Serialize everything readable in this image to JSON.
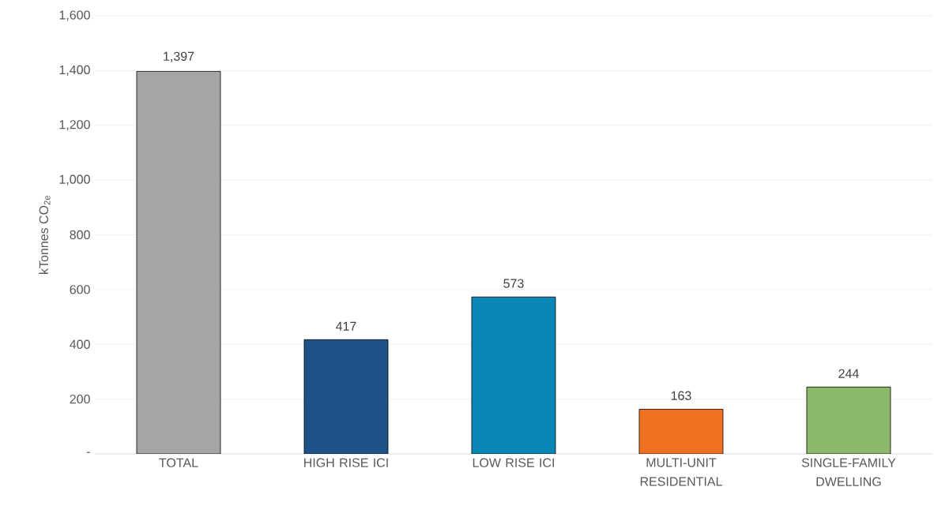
{
  "chart_data": {
    "type": "bar",
    "ylabel": "kTonnes CO$_{2e}$",
    "categories": [
      "TOTAL",
      "HIGH RISE ICI",
      "LOW RISE ICI",
      "MULTI-UNIT RESIDENTIAL",
      "SINGLE-FAMILY DWELLING"
    ],
    "values": [
      1397,
      417,
      573,
      163,
      244
    ],
    "colors": [
      "#a5a5a5",
      "#1f5288",
      "#0b87b7",
      "#f07021",
      "#8cb86a"
    ],
    "ylim": [
      0,
      1600
    ],
    "yticks": [
      {
        "value": 0,
        "label": "-"
      },
      {
        "value": 200,
        "label": "200"
      },
      {
        "value": 400,
        "label": "400"
      },
      {
        "value": 600,
        "label": "600"
      },
      {
        "value": 800,
        "label": "800"
      },
      {
        "value": 1000,
        "label": "1,000"
      },
      {
        "value": 1200,
        "label": "1,200"
      },
      {
        "value": 1400,
        "label": "1,400"
      },
      {
        "value": 1600,
        "label": "1,600"
      }
    ],
    "value_labels": [
      "1,397",
      "417",
      "573",
      "163",
      "244"
    ],
    "grid": "y"
  }
}
